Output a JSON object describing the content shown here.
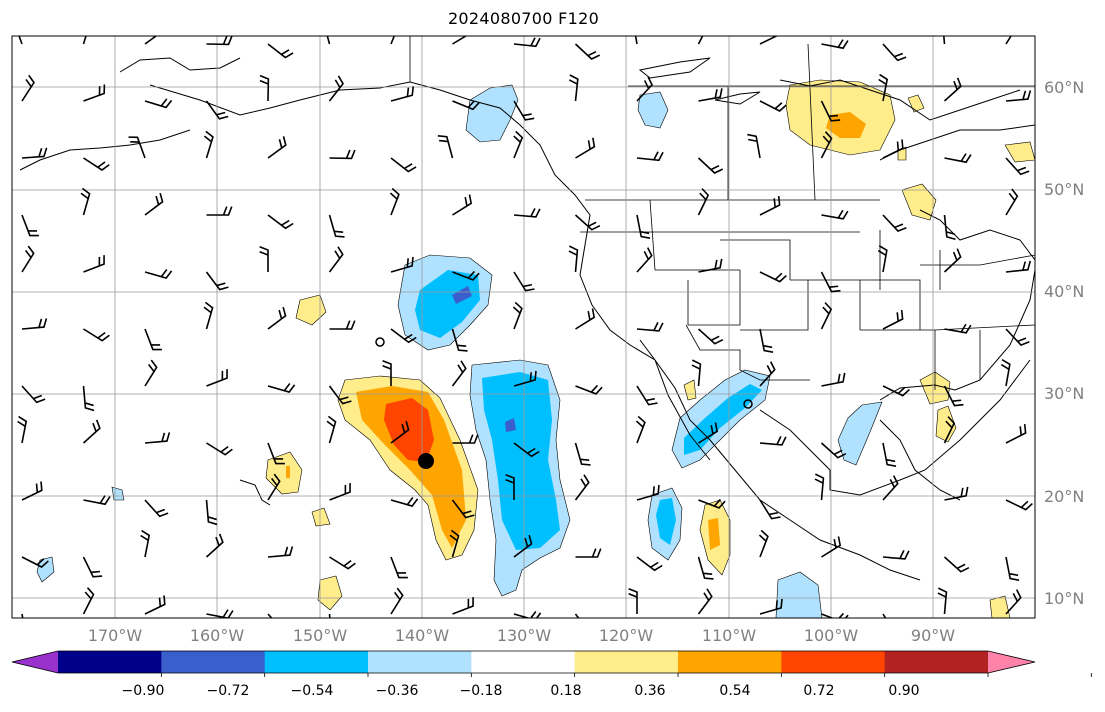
{
  "title": "2024080700 F120",
  "lat_labels": [
    "60°N",
    "50°N",
    "40°N",
    "30°N",
    "20°N",
    "10°N"
  ],
  "lon_labels": [
    "170°W",
    "160°W",
    "150°W",
    "140°W",
    "130°W",
    "120°W",
    "110°W",
    "100°W",
    "90°W"
  ],
  "colorbar": {
    "ticks": [
      "−0.90",
      "−0.72",
      "−0.54",
      "−0.36",
      "−0.18",
      "0.18",
      "0.36",
      "0.54",
      "0.72",
      "0.90"
    ],
    "colors": [
      "#9932cc",
      "#00008b",
      "#3a5fcd",
      "#00bfff",
      "#b0e2ff",
      "#ffffff",
      "#ffec8b",
      "#ffa500",
      "#ff4500",
      "#b22222",
      "#ff82ab"
    ]
  }
}
